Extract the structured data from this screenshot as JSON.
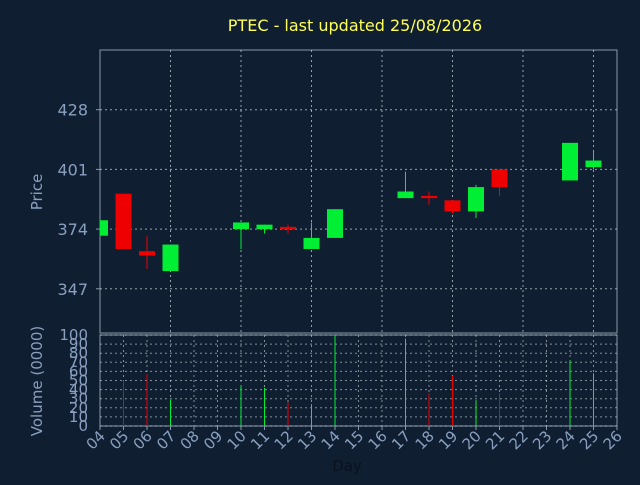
{
  "colors": {
    "background": "#0f1e30",
    "axis": "#8899aa",
    "grid": "#cfd8e0",
    "title": "#ffff55",
    "label": "#8aa0c0",
    "up": "#00ee33",
    "down": "#ee0000"
  },
  "chart_data": [
    {
      "type": "candlestick",
      "title": "PTEC - last updated 25/08/2026",
      "ylabel": "Price",
      "ylim": [
        327,
        455
      ],
      "yticks": [
        347,
        374,
        401,
        428
      ],
      "grid": true,
      "categories": [
        "04",
        "05",
        "06",
        "07",
        "08",
        "09",
        "10",
        "11",
        "12",
        "13",
        "14",
        "15",
        "16",
        "17",
        "18",
        "19",
        "20",
        "21",
        "22",
        "23",
        "24",
        "25",
        "26"
      ],
      "candles": [
        {
          "x": "04",
          "open": 371,
          "high": 378,
          "low": 371,
          "close": 378
        },
        {
          "x": "05",
          "open": 390,
          "high": 390,
          "low": 365,
          "close": 365
        },
        {
          "x": "06",
          "open": 364,
          "high": 371,
          "low": 356,
          "close": 362
        },
        {
          "x": "07",
          "open": 355,
          "high": 367,
          "low": 355,
          "close": 367
        },
        {
          "x": "10",
          "open": 374,
          "high": 377,
          "low": 365,
          "close": 377
        },
        {
          "x": "11",
          "open": 374,
          "high": 376,
          "low": 372,
          "close": 376
        },
        {
          "x": "12",
          "open": 375,
          "high": 376,
          "low": 372,
          "close": 374
        },
        {
          "x": "13",
          "open": 365,
          "high": 377,
          "low": 365,
          "close": 370
        },
        {
          "x": "14",
          "open": 370,
          "high": 383,
          "low": 370,
          "close": 383
        },
        {
          "x": "17",
          "open": 388,
          "high": 400,
          "low": 388,
          "close": 391
        },
        {
          "x": "18",
          "open": 389,
          "high": 391,
          "low": 385,
          "close": 388
        },
        {
          "x": "19",
          "open": 387,
          "high": 387,
          "low": 381,
          "close": 382
        },
        {
          "x": "20",
          "open": 382,
          "high": 394,
          "low": 379,
          "close": 393
        },
        {
          "x": "21",
          "open": 401,
          "high": 401,
          "low": 389,
          "close": 393
        },
        {
          "x": "24",
          "open": 396,
          "high": 413,
          "low": 396,
          "close": 413
        },
        {
          "x": "25",
          "open": 402,
          "high": 409,
          "low": 401,
          "close": 405
        }
      ]
    },
    {
      "type": "bar",
      "ylabel": "Volume (0000)",
      "xlabel": "Day",
      "ylim": [
        0,
        100
      ],
      "yticks": [
        0,
        10,
        20,
        30,
        40,
        50,
        60,
        70,
        80,
        90,
        100
      ],
      "grid": true,
      "categories": [
        "04",
        "05",
        "06",
        "07",
        "08",
        "09",
        "10",
        "11",
        "12",
        "13",
        "14",
        "15",
        "16",
        "17",
        "18",
        "19",
        "20",
        "21",
        "22",
        "23",
        "24",
        "25",
        "26"
      ],
      "bars": [
        {
          "x": "05",
          "value": 50,
          "dir": "down"
        },
        {
          "x": "06",
          "value": 57,
          "dir": "down"
        },
        {
          "x": "07",
          "value": 29,
          "dir": "up"
        },
        {
          "x": "10",
          "value": 44,
          "dir": "up"
        },
        {
          "x": "11",
          "value": 42,
          "dir": "up"
        },
        {
          "x": "12",
          "value": 26,
          "dir": "down"
        },
        {
          "x": "13",
          "value": 24,
          "dir": "up"
        },
        {
          "x": "14",
          "value": 100,
          "dir": "up"
        },
        {
          "x": "17",
          "value": 96,
          "dir": "up"
        },
        {
          "x": "18",
          "value": 36,
          "dir": "down"
        },
        {
          "x": "19",
          "value": 55,
          "dir": "down"
        },
        {
          "x": "20",
          "value": 28,
          "dir": "up"
        },
        {
          "x": "21",
          "value": 36,
          "dir": "down"
        },
        {
          "x": "24",
          "value": 72,
          "dir": "up"
        },
        {
          "x": "25",
          "value": 58,
          "dir": "up"
        }
      ]
    }
  ]
}
